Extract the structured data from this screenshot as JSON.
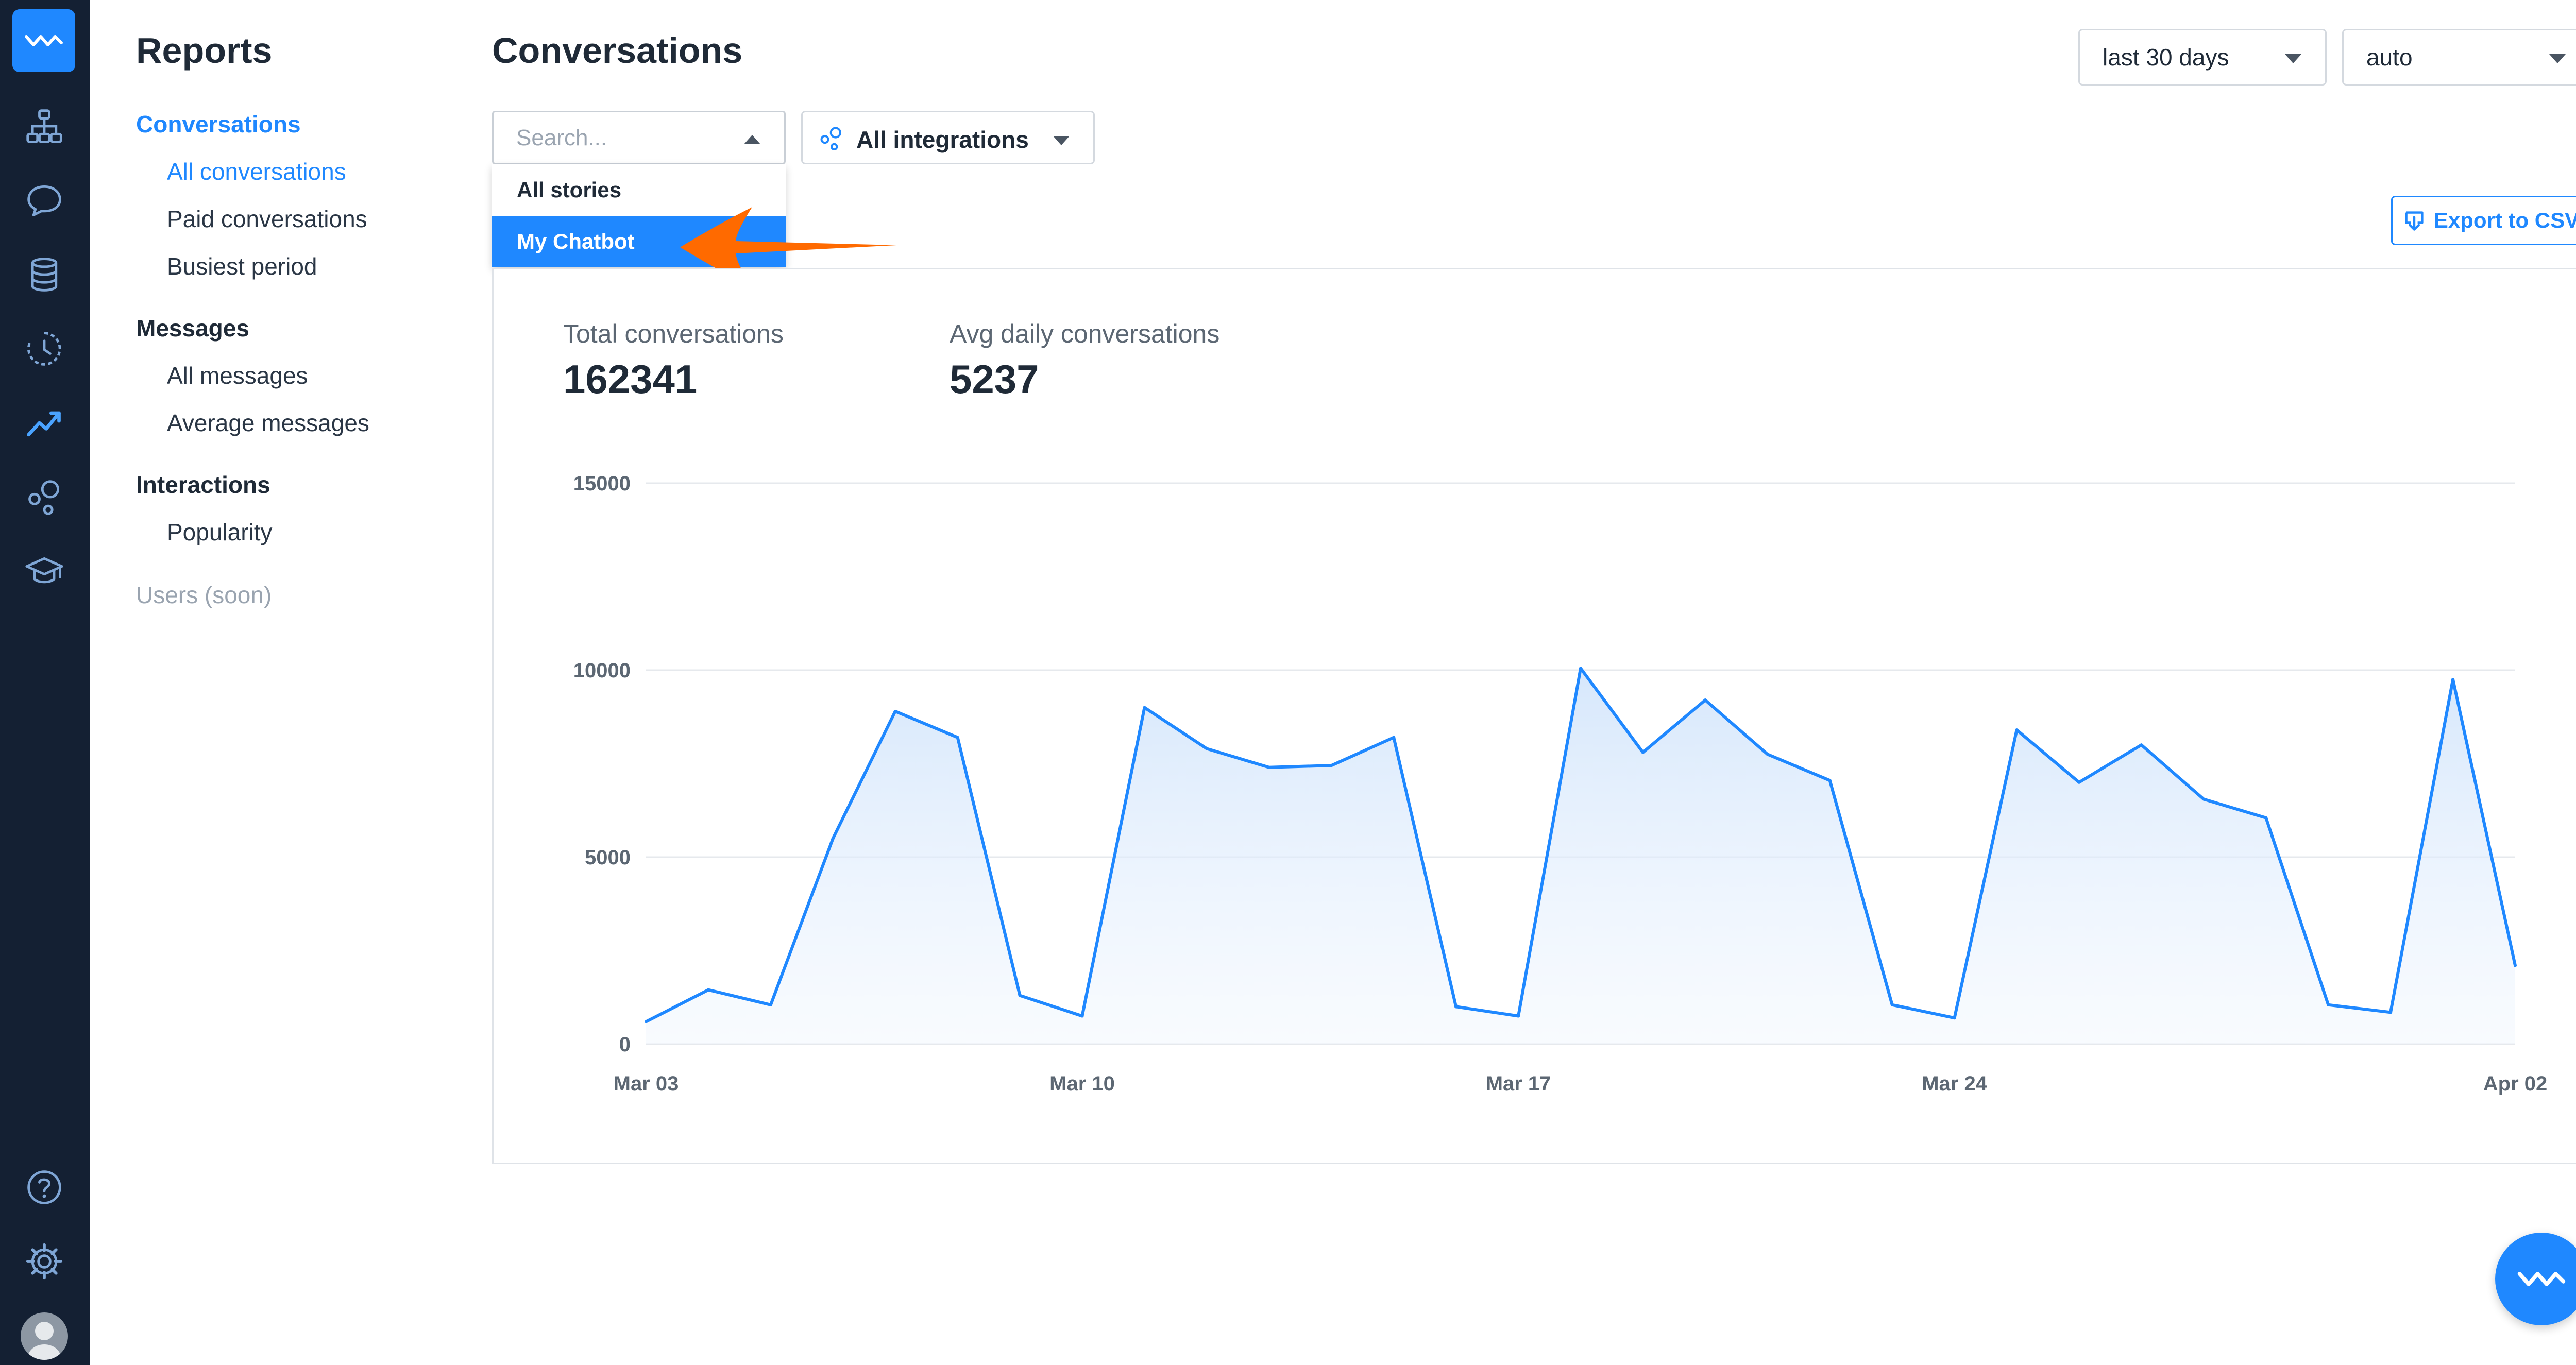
{
  "sidebar": {
    "title": "Reports",
    "groups": [
      {
        "label": "Conversations",
        "items": [
          "All conversations",
          "Paid conversations",
          "Busiest period"
        ]
      },
      {
        "label": "Messages",
        "items": [
          "All messages",
          "Average messages"
        ]
      },
      {
        "label": "Interactions",
        "items": [
          "Popularity"
        ]
      }
    ],
    "soon_label": "Users (soon)"
  },
  "main": {
    "title": "Conversations",
    "period_select": "last 30 days",
    "granularity_select": "auto",
    "story_search": {
      "placeholder": "Search...",
      "options": [
        "All stories",
        "My Chatbot"
      ],
      "selected": "My Chatbot"
    },
    "integrations_select": "All integrations",
    "export_label": "Export to CSV",
    "stats": {
      "total_label": "Total conversations",
      "total_value": "162341",
      "avg_label": "Avg daily conversations",
      "avg_value": "5237"
    }
  },
  "colors": {
    "accent": "#1f88ff",
    "rail": "#142033",
    "annotation_arrow": "#ff6a00"
  },
  "chart_data": {
    "type": "area",
    "title": "",
    "xlabel": "",
    "ylabel": "",
    "x_ticks": [
      "Mar 03",
      "Mar 10",
      "Mar 17",
      "Mar 24",
      "Apr 02"
    ],
    "y_ticks": [
      "0",
      "5000",
      "10000",
      "15000"
    ],
    "ylim": [
      0,
      15000
    ],
    "grid": true,
    "series": [
      {
        "values": [
          600,
          1450,
          1050,
          5500,
          8900,
          8200,
          1300,
          750,
          9000,
          7900,
          7400,
          7450,
          8200,
          1000,
          750,
          10050,
          7800,
          9200,
          7750,
          7050,
          1050,
          700,
          8400,
          7000,
          8000,
          6550,
          6050,
          1050,
          850,
          9750,
          2100
        ]
      }
    ]
  }
}
